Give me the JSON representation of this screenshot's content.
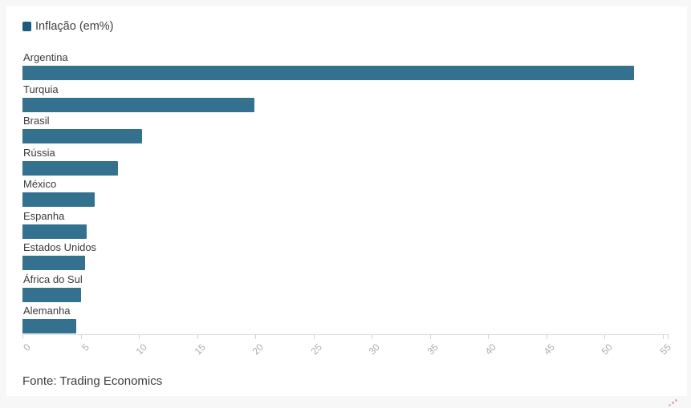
{
  "colors": {
    "page_background": "#f7f7f8",
    "card_background": "#ffffff",
    "bar_color": "#34718e",
    "legend_swatch_color": "#1a5c7e",
    "axis_line_color": "#dcdcdc",
    "axis_label_color": "#adadad",
    "category_label_color": "#3b3b3b",
    "attribution_mark_color": "#d56a85"
  },
  "legend": {
    "label": "Inflação (em%)"
  },
  "chart_data": {
    "type": "bar",
    "orientation": "horizontal",
    "title": "",
    "series_label": "Inflação (em%)",
    "categories": [
      "Argentina",
      "Turquia",
      "Brasil",
      "Rússia",
      "México",
      "Espanha",
      "Estados Unidos",
      "África do Sul",
      "Alemanha"
    ],
    "values": [
      52.5,
      19.9,
      10.3,
      8.2,
      6.2,
      5.5,
      5.4,
      5.0,
      4.6
    ],
    "xlabel": "",
    "ylabel": "",
    "xlim": [
      0,
      55
    ],
    "x_ticks": [
      0,
      5,
      10,
      15,
      20,
      25,
      30,
      35,
      40,
      45,
      50,
      55
    ],
    "grid": false,
    "legend_position": "top-left"
  },
  "footer": {
    "source_label": "Fonte: Trading Economics"
  }
}
